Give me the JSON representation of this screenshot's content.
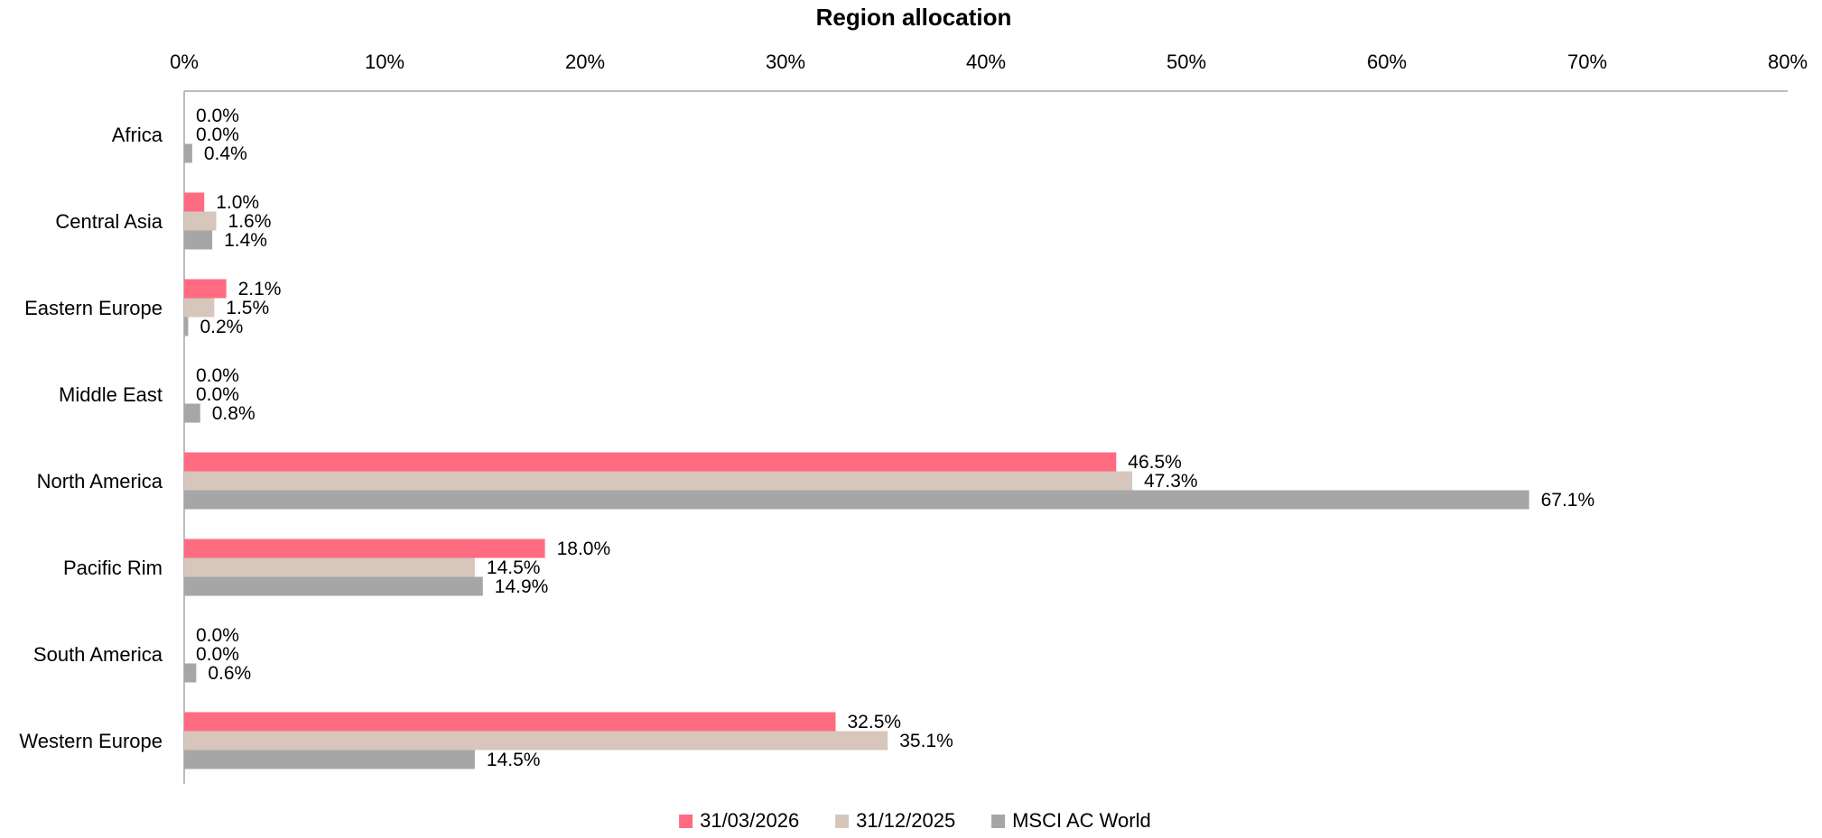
{
  "chart_data": {
    "type": "bar",
    "orientation": "horizontal",
    "title": "Region allocation",
    "xlabel": "",
    "ylabel": "",
    "xlim": [
      0,
      80
    ],
    "x_ticks": [
      "0%",
      "10%",
      "20%",
      "30%",
      "40%",
      "50%",
      "60%",
      "70%",
      "80%"
    ],
    "x_tick_values": [
      0,
      10,
      20,
      30,
      40,
      50,
      60,
      70,
      80
    ],
    "x_axis_position": "top",
    "grid": false,
    "legend_position": "bottom",
    "value_suffix": "%",
    "categories": [
      "Africa",
      "Central Asia",
      "Eastern Europe",
      "Middle East",
      "North America",
      "Pacific Rim",
      "South America",
      "Western Europe"
    ],
    "series": [
      {
        "name": "31/03/2026",
        "color": "#ff6b81",
        "values": [
          0.0,
          1.0,
          2.1,
          0.0,
          46.5,
          18.0,
          0.0,
          32.5
        ],
        "labels": [
          "0.0%",
          "1.0%",
          "2.1%",
          "0.0%",
          "46.5%",
          "18.0%",
          "0.0%",
          "32.5%"
        ]
      },
      {
        "name": "31/12/2025",
        "color": "#d6c6bb",
        "values": [
          0.0,
          1.6,
          1.5,
          0.0,
          47.3,
          14.5,
          0.0,
          35.1
        ],
        "labels": [
          "0.0%",
          "1.6%",
          "1.5%",
          "0.0%",
          "47.3%",
          "14.5%",
          "0.0%",
          "35.1%"
        ]
      },
      {
        "name": "MSCI AC World",
        "color": "#a6a6a6",
        "values": [
          0.4,
          1.4,
          0.2,
          0.8,
          67.1,
          14.9,
          0.6,
          14.5
        ],
        "labels": [
          "0.4%",
          "1.4%",
          "0.2%",
          "0.8%",
          "67.1%",
          "14.9%",
          "0.6%",
          "14.5%"
        ]
      }
    ]
  }
}
